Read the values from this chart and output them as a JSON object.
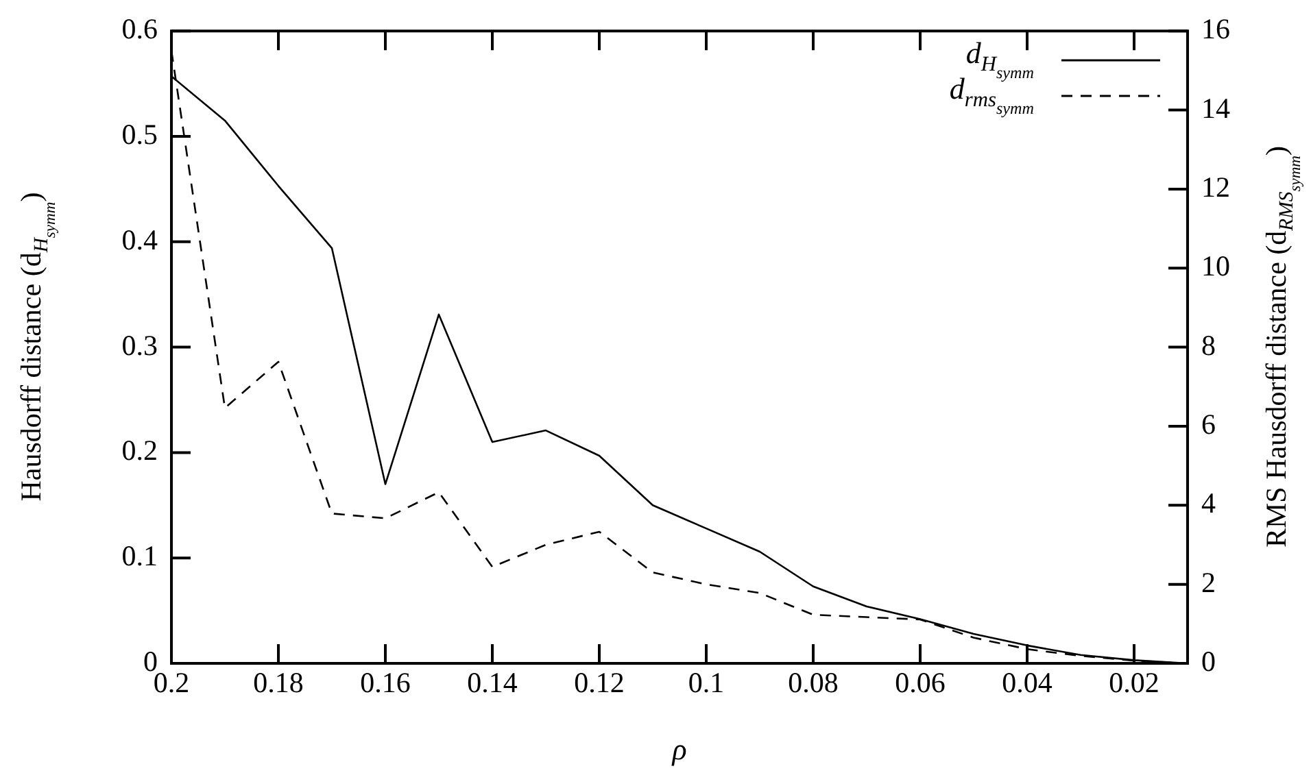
{
  "chart_data": {
    "type": "line",
    "xlabel": "ρ",
    "ylabel": "Hausdorff distance (d$_{H}$$_{symm}$)",
    "y2label": "RMS Hausdorff distance (d$_{RMS}$$_{symm}$)",
    "x": [
      0.2,
      0.19,
      0.18,
      0.17,
      0.16,
      0.15,
      0.14,
      0.13,
      0.12,
      0.11,
      0.1,
      0.09,
      0.08,
      0.07,
      0.06,
      0.05,
      0.04,
      0.03,
      0.02,
      0.01
    ],
    "series": [
      {
        "name": "d$_{H}$$_{symm}$",
        "color": "#000000",
        "line_style": "solid",
        "values": [
          0.557,
          0.515,
          0.453,
          0.394,
          0.17,
          0.331,
          0.21,
          0.221,
          0.197,
          0.15,
          0.128,
          0.106,
          0.073,
          0.054,
          0.042,
          0.028,
          0.017,
          0.008,
          0.003,
          0
        ]
      },
      {
        "name": "d$_{rms}$$_{symm}$",
        "color": "#000000",
        "line_style": "dashed",
        "axis": "y2",
        "values": [
          15.5,
          6.46,
          7.63,
          3.79,
          3.67,
          4.33,
          2.44,
          3.0,
          3.33,
          2.3,
          2.0,
          1.78,
          1.23,
          1.17,
          1.11,
          0.65,
          0.36,
          0.19,
          0.07,
          0
        ]
      }
    ],
    "xlim": [
      0.2,
      0.01
    ],
    "xticks": [
      0.2,
      0.18,
      0.16,
      0.14,
      0.12,
      0.1,
      0.08,
      0.06,
      0.04,
      0.02
    ],
    "ylim": [
      0,
      0.6
    ],
    "yticks": [
      0,
      0.1,
      0.2,
      0.3,
      0.4,
      0.5,
      0.6
    ],
    "y2lim": [
      0,
      16
    ],
    "y2ticks": [
      0,
      2,
      4,
      6,
      8,
      10,
      12,
      14,
      16
    ],
    "grid": false,
    "legend": "top right",
    "marker": "none"
  }
}
